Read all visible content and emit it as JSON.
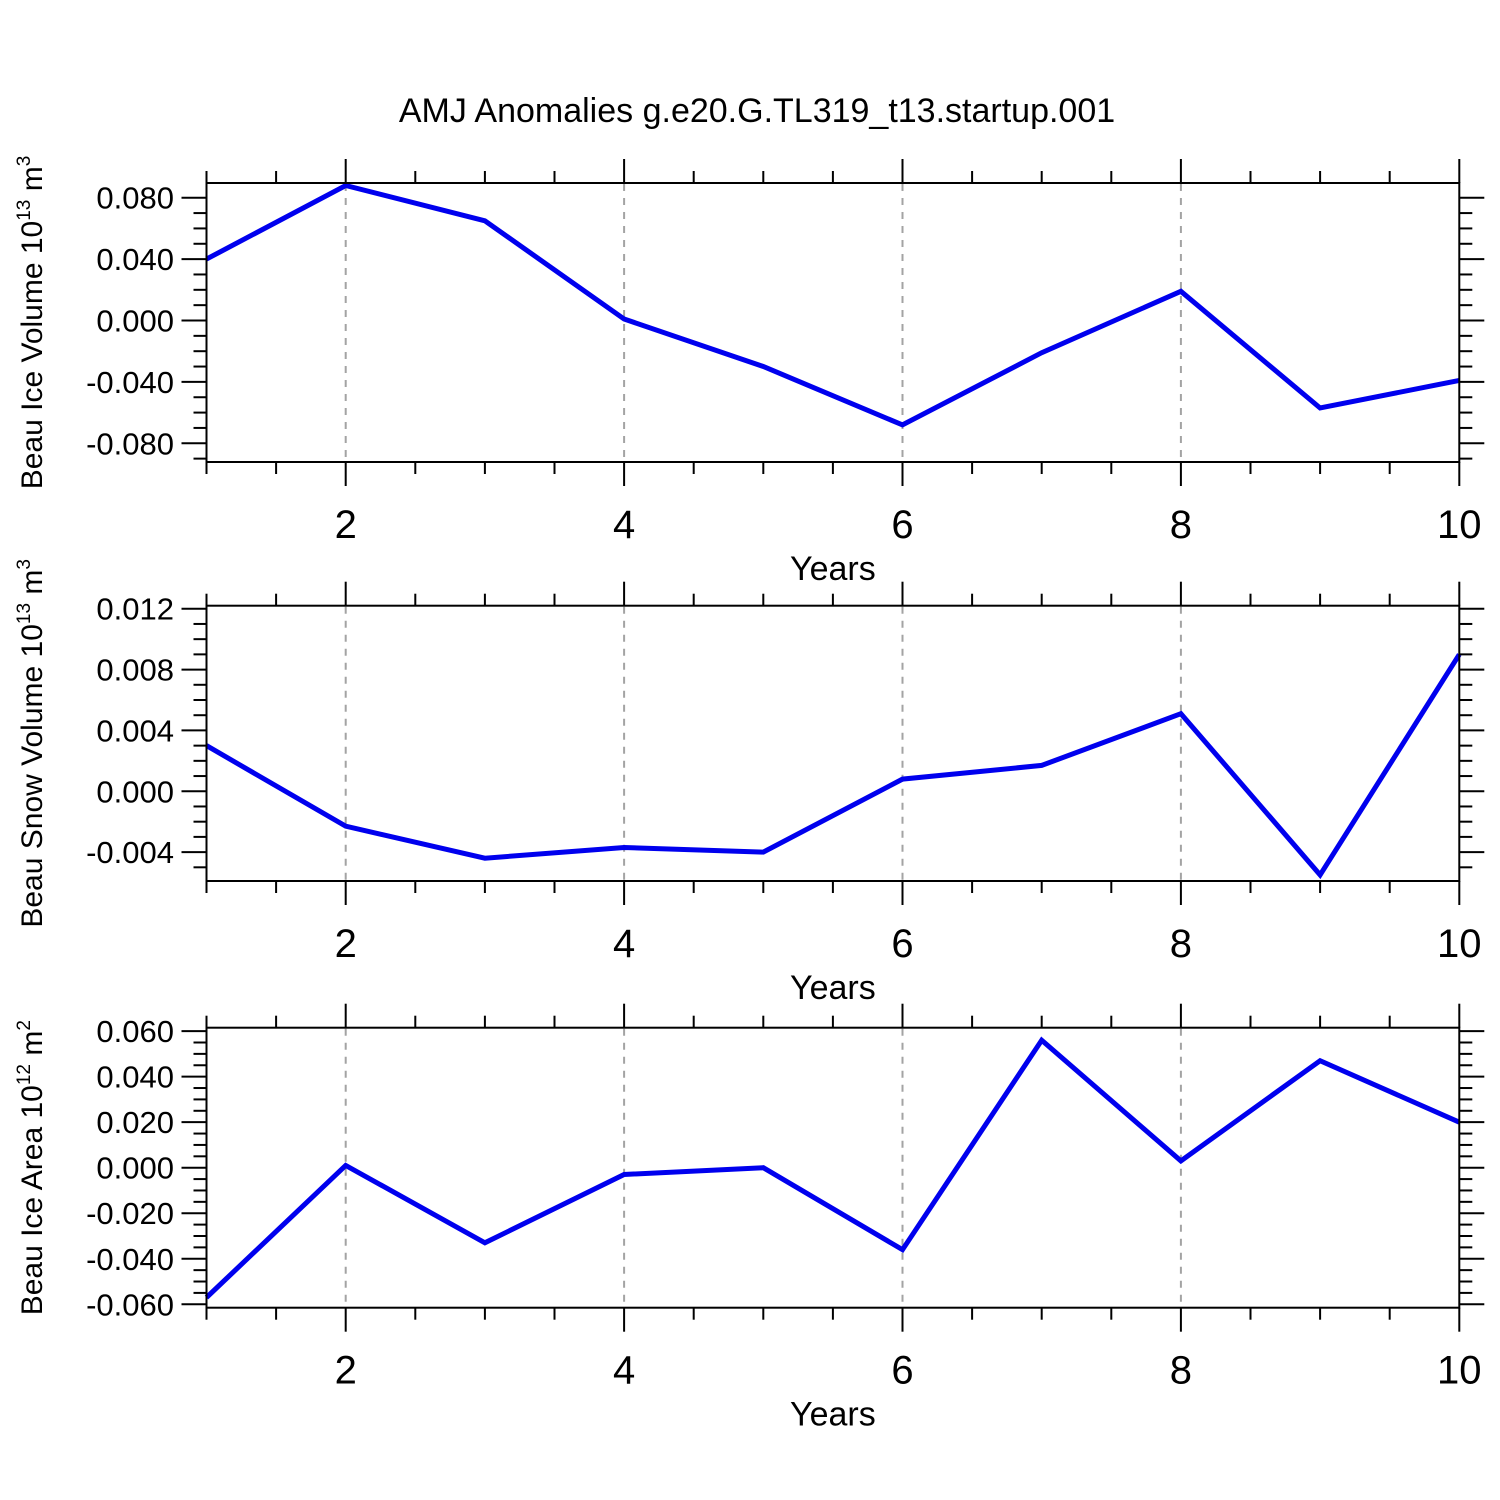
{
  "title": "AMJ Anomalies g.e20.G.TL319_t13.startup.001",
  "colors": {
    "line": "#0000ee",
    "axis": "#000000",
    "grid": "#a3a3a3",
    "background": "#ffffff",
    "text": "#000000"
  },
  "chart_data": [
    {
      "type": "line",
      "name": "beau-ice-volume",
      "ylabel": "Beau Ice Volume 10^{13} m^{3}",
      "xlabel": "Years",
      "x": [
        1,
        2,
        3,
        4,
        5,
        6,
        7,
        8,
        9,
        10
      ],
      "y": [
        0.04,
        0.088,
        0.065,
        0.001,
        -0.03,
        -0.068,
        -0.021,
        0.019,
        -0.057,
        -0.039
      ],
      "xlim": [
        1,
        10
      ],
      "ylim": [
        -0.0922,
        0.0896
      ],
      "ytick_values": [
        0.08,
        0.04,
        0.0,
        -0.04,
        -0.08
      ],
      "ytick_labels": [
        "0.080",
        "0.040",
        "0.000",
        "-0.040",
        "-0.080"
      ],
      "yminor_step": 0.01,
      "xtick_values": [
        2,
        4,
        6,
        8,
        10
      ],
      "xtick_labels": [
        "2",
        "4",
        "6",
        "8",
        "10"
      ],
      "xminor_step": 0.5,
      "grid_x": [
        2,
        4,
        6,
        8
      ],
      "grid_style": "dashed",
      "legend": "none"
    },
    {
      "type": "line",
      "name": "beau-snow-volume",
      "ylabel": "Beau Snow Volume 10^{13} m^{3}",
      "xlabel": "Years",
      "x": [
        1,
        2,
        3,
        4,
        5,
        6,
        7,
        8,
        9,
        10
      ],
      "y": [
        0.003,
        -0.0023,
        -0.0044,
        -0.0037,
        -0.004,
        0.0008,
        0.0017,
        0.0051,
        -0.0055,
        0.009
      ],
      "xlim": [
        1,
        10
      ],
      "ylim": [
        -0.0059,
        0.0122
      ],
      "ytick_values": [
        0.012,
        0.008,
        0.004,
        0.0,
        -0.004
      ],
      "ytick_labels": [
        "0.012",
        "0.008",
        "0.004",
        "0.000",
        "-0.004"
      ],
      "yminor_step": 0.001,
      "xtick_values": [
        2,
        4,
        6,
        8,
        10
      ],
      "xtick_labels": [
        "2",
        "4",
        "6",
        "8",
        "10"
      ],
      "xminor_step": 0.5,
      "grid_x": [
        2,
        4,
        6,
        8
      ],
      "grid_style": "dashed",
      "legend": "none"
    },
    {
      "type": "line",
      "name": "beau-ice-area",
      "ylabel": "Beau Ice Area 10^{12} m^{2}",
      "xlabel": "Years",
      "x": [
        1,
        2,
        3,
        4,
        5,
        6,
        7,
        8,
        9,
        10
      ],
      "y": [
        -0.057,
        0.001,
        -0.033,
        -0.003,
        0.0,
        -0.036,
        0.056,
        0.003,
        0.047,
        0.02
      ],
      "xlim": [
        1,
        10
      ],
      "ylim": [
        -0.0615,
        0.0615
      ],
      "ytick_values": [
        0.06,
        0.04,
        0.02,
        0.0,
        -0.02,
        -0.04,
        -0.06
      ],
      "ytick_labels": [
        "0.060",
        "0.040",
        "0.020",
        "0.000",
        "-0.020",
        "-0.040",
        "-0.060"
      ],
      "yminor_step": 0.005,
      "xtick_values": [
        2,
        4,
        6,
        8,
        10
      ],
      "xtick_labels": [
        "2",
        "4",
        "6",
        "8",
        "10"
      ],
      "xminor_step": 0.5,
      "grid_x": [
        2,
        4,
        6,
        8
      ],
      "grid_style": "dashed",
      "legend": "none"
    }
  ]
}
